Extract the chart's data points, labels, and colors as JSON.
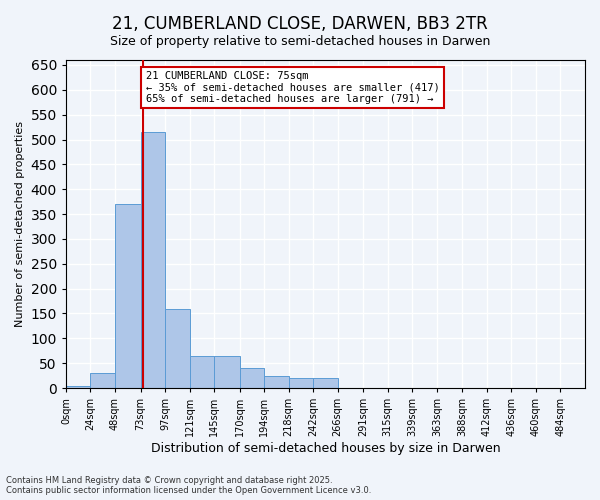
{
  "title_line1": "21, CUMBERLAND CLOSE, DARWEN, BB3 2TR",
  "title_line2": "Size of property relative to semi-detached houses in Darwen",
  "xlabel": "Distribution of semi-detached houses by size in Darwen",
  "ylabel": "Number of semi-detached properties",
  "bin_labels": [
    "0sqm",
    "24sqm",
    "48sqm",
    "73sqm",
    "97sqm",
    "121sqm",
    "145sqm",
    "170sqm",
    "194sqm",
    "218sqm",
    "242sqm",
    "266sqm",
    "291sqm",
    "315sqm",
    "339sqm",
    "363sqm",
    "388sqm",
    "412sqm",
    "436sqm",
    "460sqm",
    "484sqm"
  ],
  "bin_edges": [
    0,
    24,
    48,
    73,
    97,
    121,
    145,
    170,
    194,
    218,
    242,
    266,
    291,
    315,
    339,
    363,
    388,
    412,
    436,
    460,
    484,
    508
  ],
  "bar_heights": [
    5,
    30,
    370,
    515,
    160,
    65,
    65,
    40,
    25,
    20,
    20,
    0,
    0,
    0,
    0,
    0,
    0,
    0,
    0,
    0,
    0
  ],
  "bar_color": "#aec6e8",
  "bar_edge_color": "#5b9bd5",
  "property_size": 75,
  "property_label": "21 CUMBERLAND CLOSE: 75sqm",
  "annotation_smaller": "← 35% of semi-detached houses are smaller (417)",
  "annotation_larger": "65% of semi-detached houses are larger (791) →",
  "vline_color": "#cc0000",
  "annotation_box_edge_color": "#cc0000",
  "ylim": [
    0,
    660
  ],
  "yticks": [
    0,
    50,
    100,
    150,
    200,
    250,
    300,
    350,
    400,
    450,
    500,
    550,
    600,
    650
  ],
  "background_color": "#f0f4fa",
  "grid_color": "#ffffff",
  "footer_line1": "Contains HM Land Registry data © Crown copyright and database right 2025.",
  "footer_line2": "Contains public sector information licensed under the Open Government Licence v3.0."
}
